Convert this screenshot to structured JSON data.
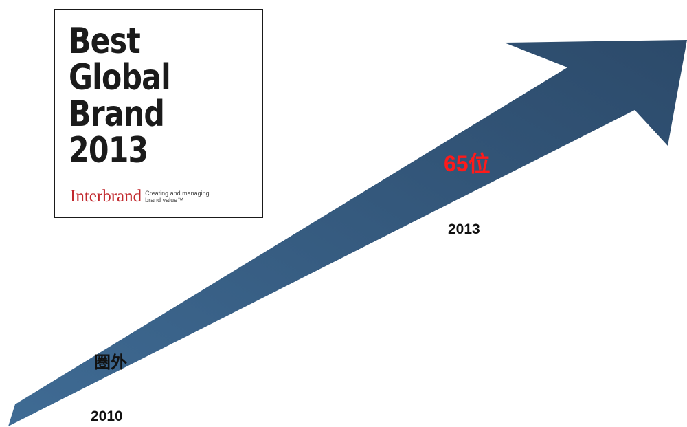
{
  "logo": {
    "title_lines": [
      "Best",
      "Global",
      "Brand",
      "2013"
    ],
    "brand": "Interbrand",
    "tagline_lines": [
      "Creating and managing",
      "brand value™"
    ]
  },
  "milestones": [
    {
      "year": "2010",
      "rank": "圏外"
    },
    {
      "year": "2013",
      "rank": "65位"
    }
  ],
  "colors": {
    "arrow_start": "#3f6b94",
    "arrow_end": "#2c4a6a",
    "rank_highlight": "#ff1a1a",
    "brand_red": "#c1282d"
  },
  "arrow_icon": "upward-trend-arrow-icon"
}
